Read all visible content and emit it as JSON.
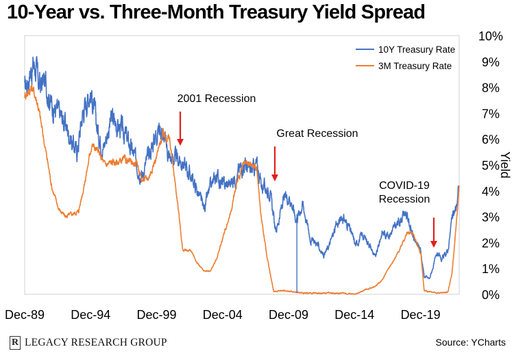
{
  "title": "10-Year vs. Three-Month Treasury Yield Spread",
  "source": "Source: YCharts",
  "logo": {
    "mark": "R",
    "text": "LEGACY RESEARCH GROUP"
  },
  "chart_data": {
    "type": "line",
    "title": "10-Year vs. Three-Month Treasury Yield Spread",
    "xlabel": "",
    "ylabel": "Yield",
    "x_range": [
      1989.92,
      2022.85
    ],
    "ylim": [
      0,
      10
    ],
    "y_ticks": [
      0,
      1,
      2,
      3,
      4,
      5,
      6,
      7,
      8,
      9,
      10
    ],
    "y_tick_labels": [
      "0%",
      "1%",
      "2%",
      "3%",
      "4%",
      "5%",
      "6%",
      "7%",
      "8%",
      "9%",
      "10%"
    ],
    "y_axis_position": "right",
    "x_ticks": [
      1989.92,
      1994.92,
      1999.92,
      2004.92,
      2009.92,
      2014.92,
      2019.92
    ],
    "x_tick_labels": [
      "Dec-89",
      "Dec-94",
      "Dec-99",
      "Dec-04",
      "Dec-09",
      "Dec-14",
      "Dec-19"
    ],
    "grid": false,
    "legend_position": "top-right",
    "series": [
      {
        "name": "10Y Treasury Rate",
        "color": "#4472C4",
        "points": [
          [
            1989.92,
            7.9
          ],
          [
            1990.3,
            8.6
          ],
          [
            1990.7,
            8.9
          ],
          [
            1991.0,
            8.1
          ],
          [
            1991.5,
            8.2
          ],
          [
            1992.0,
            7.3
          ],
          [
            1992.5,
            7.0
          ],
          [
            1993.0,
            6.6
          ],
          [
            1993.5,
            5.9
          ],
          [
            1993.9,
            5.5
          ],
          [
            1994.3,
            7.0
          ],
          [
            1994.9,
            7.9
          ],
          [
            1995.5,
            6.2
          ],
          [
            1995.9,
            5.7
          ],
          [
            1996.5,
            6.8
          ],
          [
            1997.0,
            6.5
          ],
          [
            1997.5,
            6.2
          ],
          [
            1998.0,
            5.6
          ],
          [
            1998.8,
            4.6
          ],
          [
            1999.3,
            5.3
          ],
          [
            1999.9,
            6.3
          ],
          [
            2000.2,
            6.5
          ],
          [
            2000.9,
            5.3
          ],
          [
            2001.5,
            5.2
          ],
          [
            2001.9,
            5.1
          ],
          [
            2002.5,
            4.6
          ],
          [
            2003.0,
            4.0
          ],
          [
            2003.5,
            3.3
          ],
          [
            2004.0,
            4.1
          ],
          [
            2004.5,
            4.6
          ],
          [
            2005.0,
            4.2
          ],
          [
            2005.5,
            4.3
          ],
          [
            2006.0,
            4.6
          ],
          [
            2006.5,
            5.1
          ],
          [
            2007.0,
            4.7
          ],
          [
            2007.5,
            5.0
          ],
          [
            2007.9,
            4.2
          ],
          [
            2008.5,
            4.0
          ],
          [
            2008.95,
            2.4
          ],
          [
            2009.5,
            3.6
          ],
          [
            2010.0,
            3.8
          ],
          [
            2010.5,
            2.9
          ],
          [
            2011.0,
            3.5
          ],
          [
            2011.6,
            2.1
          ],
          [
            2012.0,
            2.0
          ],
          [
            2012.6,
            1.5
          ],
          [
            2013.0,
            1.9
          ],
          [
            2013.5,
            2.6
          ],
          [
            2014.0,
            3.0
          ],
          [
            2014.5,
            2.6
          ],
          [
            2015.0,
            1.9
          ],
          [
            2015.5,
            2.3
          ],
          [
            2016.0,
            2.0
          ],
          [
            2016.5,
            1.4
          ],
          [
            2017.0,
            2.4
          ],
          [
            2017.5,
            2.3
          ],
          [
            2018.0,
            2.6
          ],
          [
            2018.8,
            3.2
          ],
          [
            2019.5,
            2.0
          ],
          [
            2019.9,
            1.8
          ],
          [
            2020.2,
            0.7
          ],
          [
            2020.6,
            0.6
          ],
          [
            2021.2,
            1.6
          ],
          [
            2021.5,
            1.3
          ],
          [
            2022.0,
            1.7
          ],
          [
            2022.3,
            2.9
          ],
          [
            2022.6,
            3.3
          ],
          [
            2022.85,
            4.2
          ]
        ]
      },
      {
        "name": "3M Treasury Rate",
        "color": "#ED7D31",
        "points": [
          [
            1989.92,
            7.7
          ],
          [
            1990.5,
            8.0
          ],
          [
            1990.9,
            7.4
          ],
          [
            1991.5,
            5.6
          ],
          [
            1992.0,
            4.1
          ],
          [
            1992.5,
            3.3
          ],
          [
            1993.0,
            3.0
          ],
          [
            1993.5,
            3.1
          ],
          [
            1994.0,
            3.2
          ],
          [
            1994.5,
            4.4
          ],
          [
            1995.0,
            5.8
          ],
          [
            1995.5,
            5.5
          ],
          [
            1996.0,
            5.0
          ],
          [
            1996.5,
            5.1
          ],
          [
            1997.0,
            5.1
          ],
          [
            1997.5,
            5.2
          ],
          [
            1998.0,
            5.1
          ],
          [
            1998.5,
            5.0
          ],
          [
            1998.8,
            4.4
          ],
          [
            1999.3,
            4.5
          ],
          [
            1999.9,
            5.3
          ],
          [
            2000.4,
            6.2
          ],
          [
            2000.9,
            6.0
          ],
          [
            2001.5,
            3.6
          ],
          [
            2001.9,
            1.7
          ],
          [
            2002.5,
            1.7
          ],
          [
            2003.0,
            1.2
          ],
          [
            2003.5,
            0.9
          ],
          [
            2004.0,
            0.9
          ],
          [
            2004.5,
            1.4
          ],
          [
            2005.0,
            2.3
          ],
          [
            2005.5,
            3.1
          ],
          [
            2006.0,
            4.3
          ],
          [
            2006.5,
            5.0
          ],
          [
            2007.0,
            5.0
          ],
          [
            2007.5,
            4.9
          ],
          [
            2007.8,
            3.2
          ],
          [
            2008.3,
            1.4
          ],
          [
            2008.8,
            0.1
          ],
          [
            2009.5,
            0.15
          ],
          [
            2011.0,
            0.05
          ],
          [
            2013.0,
            0.05
          ],
          [
            2015.0,
            0.02
          ],
          [
            2015.9,
            0.2
          ],
          [
            2016.5,
            0.3
          ],
          [
            2017.0,
            0.55
          ],
          [
            2017.5,
            1.0
          ],
          [
            2018.0,
            1.4
          ],
          [
            2018.5,
            1.9
          ],
          [
            2018.9,
            2.35
          ],
          [
            2019.3,
            2.4
          ],
          [
            2019.7,
            1.9
          ],
          [
            2019.95,
            1.55
          ],
          [
            2020.2,
            0.15
          ],
          [
            2020.5,
            0.1
          ],
          [
            2021.5,
            0.05
          ],
          [
            2022.0,
            0.1
          ],
          [
            2022.3,
            0.8
          ],
          [
            2022.55,
            2.2
          ],
          [
            2022.85,
            4.2
          ]
        ]
      }
    ],
    "annotations": [
      {
        "label": "2001 Recession",
        "x": 2001.2,
        "y": 5.6,
        "style": "red-arrow-down"
      },
      {
        "label": "Great Recession",
        "x": 2007.95,
        "y": 4.3,
        "style": "red-arrow-down"
      },
      {
        "label": "COVID-19\nRecession",
        "x": 2020.05,
        "y": 1.8,
        "style": "red-arrow-down"
      }
    ]
  }
}
